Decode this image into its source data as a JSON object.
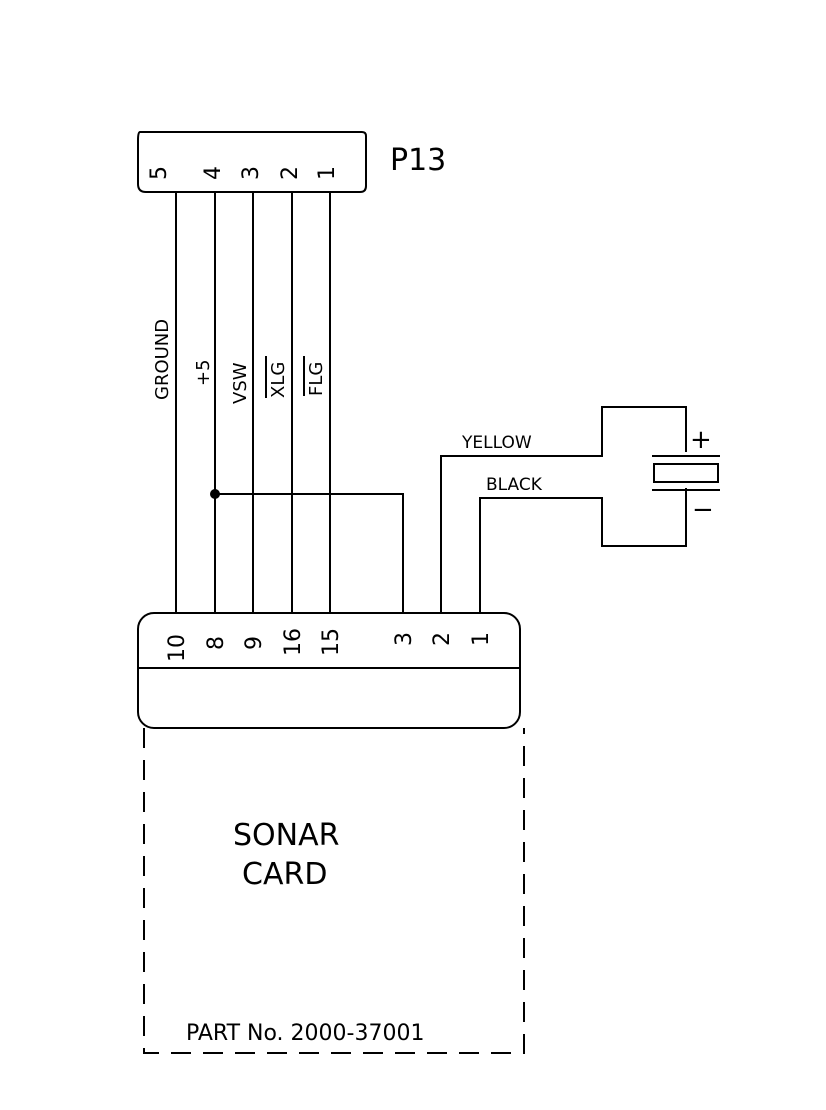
{
  "connector": {
    "name": "P13",
    "pins": [
      "5",
      "4",
      "3",
      "2",
      "1"
    ]
  },
  "signals": [
    "GROUND",
    "+5",
    "VSW",
    "XLG",
    "FLG"
  ],
  "card": {
    "pins": [
      "10",
      "8",
      "9",
      "16",
      "15",
      "3",
      "2",
      "1"
    ],
    "title_line1": "SONAR",
    "title_line2": "CARD",
    "part_no": "PART No. 2000-37001"
  },
  "wires": {
    "yellow": "YELLOW",
    "black": "BLACK"
  },
  "transducer": {
    "plus": "+",
    "minus": "−"
  },
  "colors": {
    "ink": "#000000",
    "paper": "#ffffff"
  }
}
